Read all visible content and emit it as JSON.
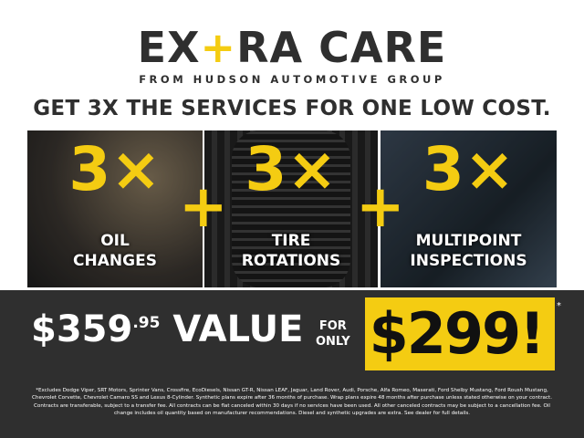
{
  "logo": {
    "part1": "EX",
    "plus": "+",
    "part2": "RA CARE",
    "sub": "FROM HUDSON AUTOMOTIVE GROUP"
  },
  "headline": "GET 3X THE SERVICES FOR ONE LOW COST.",
  "services": [
    {
      "count": "3×",
      "label1": "OIL",
      "label2": "CHANGES"
    },
    {
      "count": "3×",
      "label1": "TIRE",
      "label2": "ROTATIONS"
    },
    {
      "count": "3×",
      "label1": "MULTIPOINT",
      "label2": "INSPECTIONS"
    }
  ],
  "plus_sign": "+",
  "value": {
    "dollars": "$359",
    "cents": ".95",
    "word": "VALUE"
  },
  "for_only": {
    "line1": "FOR",
    "line2": "ONLY"
  },
  "price": "$299!",
  "asterisk": "*",
  "fine_print": "*Excludes Dodge Viper, SRT Motors, Sprinter Vans, Crossfire, EcoDiesels, Nissan GT-R, Nissan LEAF, Jaguar, Land Rover, Audi, Porsche, Alfa Romeo, Maserati, Ford Shelby Mustang, Ford Roush Mustang, Chevrolet Corvette, Chevrolet Camaro SS and Lexus 8-Cylinder. Synthetic plans expire after 36 months of purchase. Wrap plans expire 48 months after purchase unless stated otherwise on your contract. Contracts are transferable, subject to a transfer fee. All contracts can be flat canceled within 30 days if no services have been used. All other canceled contracts may be subject to a cancellation fee. Oil change includes oil quantity based on manufacturer recommendations. Diesel and synthetic upgrades are extra. See dealer for full details.",
  "colors": {
    "accent": "#f4cc12",
    "dark": "#2f2f2f"
  }
}
